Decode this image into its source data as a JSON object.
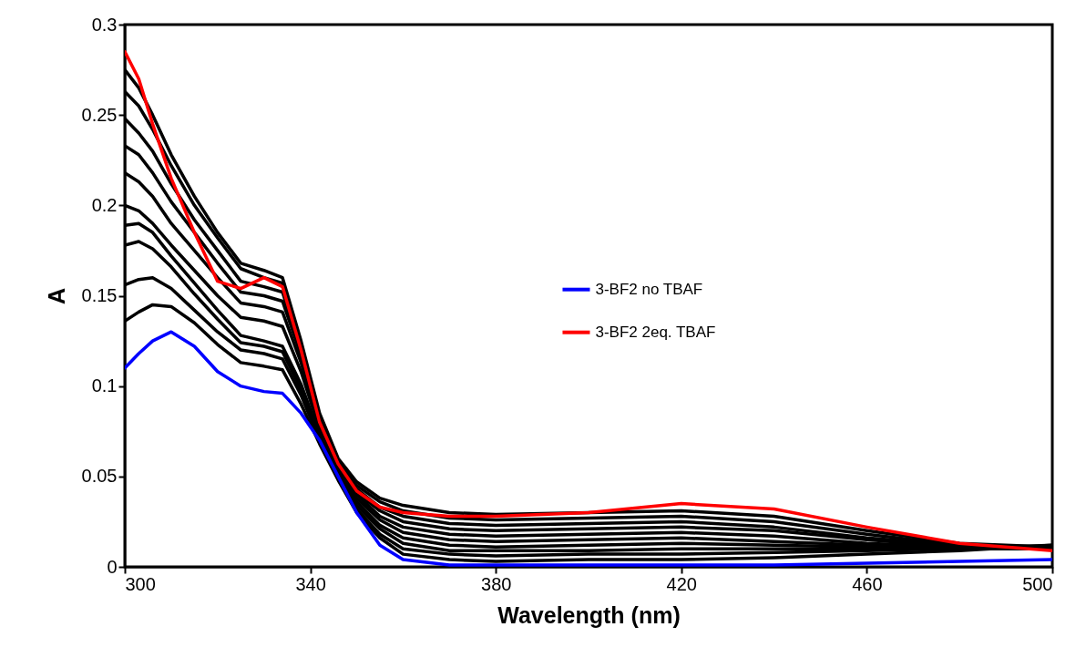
{
  "chart_data": {
    "type": "line",
    "xlabel": "Wavelength (nm)",
    "ylabel": "A",
    "x": [
      300,
      303,
      306,
      310,
      315,
      320,
      325,
      330,
      334,
      338,
      342,
      346,
      350,
      355,
      360,
      370,
      380,
      400,
      420,
      440,
      460,
      480,
      500
    ],
    "xlim": [
      300,
      500
    ],
    "xticks": [
      300,
      340,
      380,
      420,
      460,
      500
    ],
    "ylim": [
      0,
      0.3
    ],
    "yticks": [
      0,
      0.05,
      0.1,
      0.15,
      0.2,
      0.25,
      0.3
    ],
    "grid": false,
    "legend": "center",
    "line_style": "solid",
    "series": [
      {
        "color": "#000000",
        "values": [
          0.275,
          0.265,
          0.25,
          0.228,
          0.205,
          0.185,
          0.168,
          0.164,
          0.16,
          0.125,
          0.085,
          0.06,
          0.047,
          0.038,
          0.034,
          0.03,
          0.029,
          0.03,
          0.031,
          0.028,
          0.02,
          0.013,
          0.011
        ]
      },
      {
        "color": "#000000",
        "values": [
          0.263,
          0.255,
          0.242,
          0.222,
          0.2,
          0.182,
          0.165,
          0.16,
          0.157,
          0.123,
          0.083,
          0.058,
          0.045,
          0.036,
          0.031,
          0.027,
          0.026,
          0.027,
          0.028,
          0.025,
          0.018,
          0.012,
          0.011
        ]
      },
      {
        "color": "#000000",
        "values": [
          0.248,
          0.24,
          0.23,
          0.212,
          0.192,
          0.175,
          0.158,
          0.155,
          0.152,
          0.12,
          0.082,
          0.057,
          0.043,
          0.033,
          0.028,
          0.024,
          0.023,
          0.024,
          0.025,
          0.022,
          0.016,
          0.012,
          0.011
        ]
      },
      {
        "color": "#000000",
        "values": [
          0.233,
          0.228,
          0.218,
          0.202,
          0.185,
          0.168,
          0.152,
          0.15,
          0.147,
          0.117,
          0.08,
          0.056,
          0.041,
          0.031,
          0.025,
          0.021,
          0.02,
          0.021,
          0.022,
          0.02,
          0.015,
          0.011,
          0.011
        ]
      },
      {
        "color": "#000000",
        "values": [
          0.218,
          0.213,
          0.205,
          0.19,
          0.175,
          0.16,
          0.146,
          0.144,
          0.141,
          0.113,
          0.078,
          0.055,
          0.04,
          0.028,
          0.022,
          0.018,
          0.017,
          0.018,
          0.019,
          0.017,
          0.013,
          0.011,
          0.01
        ]
      },
      {
        "color": "#000000",
        "values": [
          0.2,
          0.197,
          0.19,
          0.178,
          0.164,
          0.15,
          0.138,
          0.136,
          0.133,
          0.108,
          0.076,
          0.053,
          0.038,
          0.026,
          0.019,
          0.015,
          0.014,
          0.015,
          0.016,
          0.014,
          0.012,
          0.01,
          0.01
        ]
      },
      {
        "color": "#000000",
        "values": [
          0.189,
          0.19,
          0.185,
          0.172,
          0.157,
          0.142,
          0.128,
          0.125,
          0.122,
          0.101,
          0.073,
          0.052,
          0.036,
          0.023,
          0.016,
          0.012,
          0.011,
          0.012,
          0.013,
          0.012,
          0.011,
          0.01,
          0.012
        ]
      },
      {
        "color": "#000000",
        "values": [
          0.178,
          0.18,
          0.176,
          0.166,
          0.151,
          0.137,
          0.124,
          0.122,
          0.119,
          0.098,
          0.071,
          0.05,
          0.034,
          0.021,
          0.013,
          0.009,
          0.009,
          0.009,
          0.01,
          0.01,
          0.01,
          0.01,
          0.011
        ]
      },
      {
        "color": "#000000",
        "values": [
          0.156,
          0.159,
          0.16,
          0.154,
          0.142,
          0.13,
          0.12,
          0.118,
          0.115,
          0.095,
          0.07,
          0.049,
          0.032,
          0.018,
          0.01,
          0.007,
          0.006,
          0.007,
          0.007,
          0.008,
          0.009,
          0.01,
          0.011
        ]
      },
      {
        "color": "#000000",
        "values": [
          0.136,
          0.141,
          0.145,
          0.144,
          0.135,
          0.123,
          0.113,
          0.111,
          0.109,
          0.09,
          0.068,
          0.048,
          0.03,
          0.016,
          0.007,
          0.004,
          0.003,
          0.004,
          0.004,
          0.005,
          0.007,
          0.009,
          0.012
        ]
      },
      {
        "name": "3-BF2 no TBAF",
        "color": "#0000ff",
        "values": [
          0.11,
          0.118,
          0.125,
          0.13,
          0.122,
          0.108,
          0.1,
          0.097,
          0.096,
          0.085,
          0.07,
          0.05,
          0.03,
          0.012,
          0.004,
          0.001,
          0.001,
          0.001,
          0.001,
          0.001,
          0.002,
          0.003,
          0.004
        ]
      },
      {
        "name": "3-BF2 2eq. TBAF",
        "color": "#ff0000",
        "values": [
          0.285,
          0.27,
          0.245,
          0.215,
          0.185,
          0.158,
          0.154,
          0.16,
          0.155,
          0.12,
          0.08,
          0.057,
          0.042,
          0.033,
          0.03,
          0.028,
          0.028,
          0.03,
          0.035,
          0.032,
          0.022,
          0.013,
          0.009
        ]
      }
    ]
  }
}
